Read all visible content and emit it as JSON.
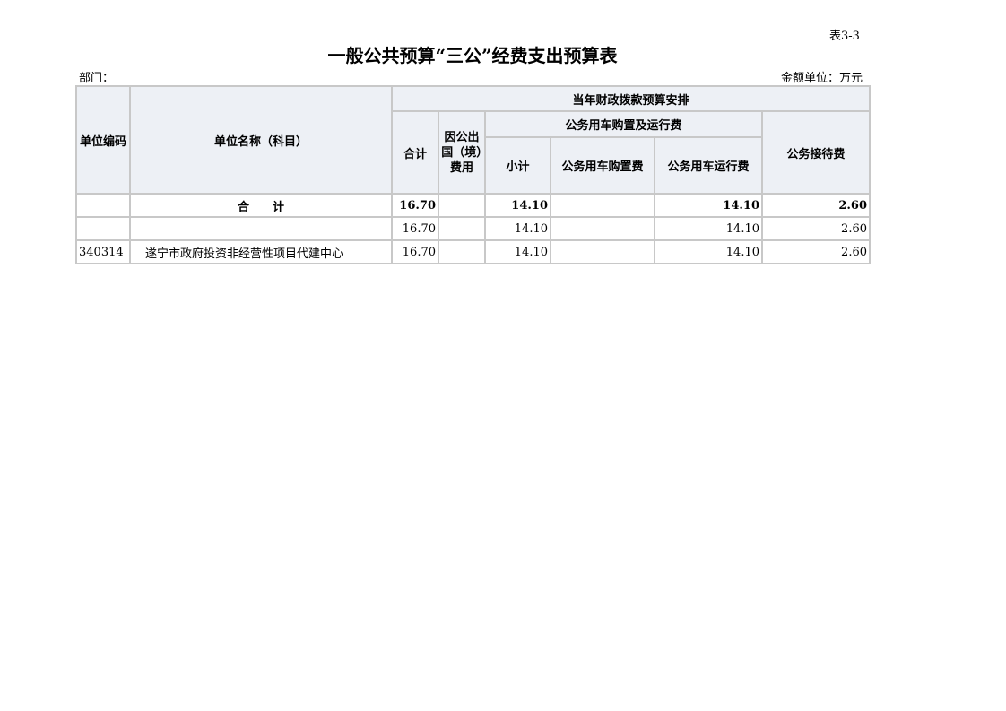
{
  "table_no": "表3-3",
  "title": "一般公共预算“三公”经费支出预算表",
  "department_label": "部门：",
  "unit_label": "金额单位：万元",
  "headers": {
    "code": "单位编码",
    "name": "单位名称（科目）",
    "group": "当年财政拨款预算安排",
    "total": "合计",
    "abroad": "因公出国（境）费用",
    "vehicle_group": "公务用车购置及运行费",
    "subtotal": "小计",
    "vehicle_purchase": "公务用车购置费",
    "vehicle_operation": "公务用车运行费",
    "reception": "公务接待费"
  },
  "rows": [
    {
      "code": "",
      "name": "合　　计",
      "total": "16.70",
      "abroad": "",
      "subtotal": "14.10",
      "purchase": "",
      "operation": "14.10",
      "reception": "2.60"
    },
    {
      "code": "",
      "name": "",
      "total": "16.70",
      "abroad": "",
      "subtotal": "14.10",
      "purchase": "",
      "operation": "14.10",
      "reception": "2.60"
    },
    {
      "code": "340314",
      "name": "遂宁市政府投资非经营性项目代建中心",
      "total": "16.70",
      "abroad": "",
      "subtotal": "14.10",
      "purchase": "",
      "operation": "14.10",
      "reception": "2.60"
    }
  ]
}
